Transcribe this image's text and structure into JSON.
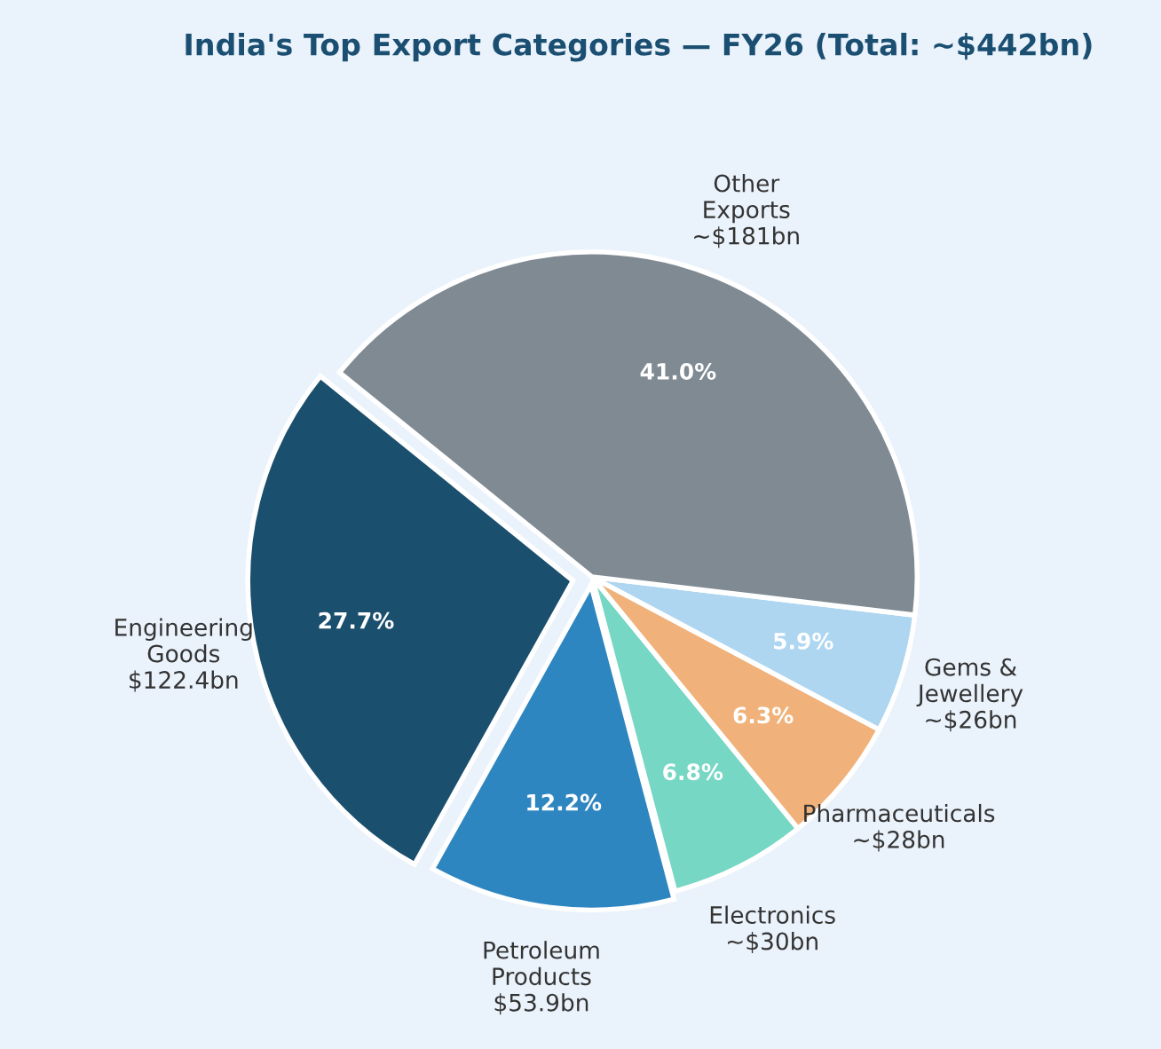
{
  "chart_data": {
    "type": "pie",
    "title": "India's Top Export Categories — FY26 (Total: ~$442bn)",
    "categories": [
      "Engineering\nGoods\n$122.4bn",
      "Petroleum\nProducts\n$53.9bn",
      "Electronics\n~$30bn",
      "Pharmaceuticals\n~$28bn",
      "Gems &\nJewellery\n~$26bn",
      "Other\nExports\n~$181bn"
    ],
    "values": [
      27.7,
      12.2,
      6.8,
      6.3,
      5.9,
      41.0
    ],
    "value_labels": [
      "27.7%",
      "12.2%",
      "6.8%",
      "6.3%",
      "5.9%",
      "41.0%"
    ],
    "colors": [
      "#1b4f6e",
      "#2e86c1",
      "#76d7c4",
      "#f0b27a",
      "#aed6f1",
      "#7f8a93"
    ]
  }
}
